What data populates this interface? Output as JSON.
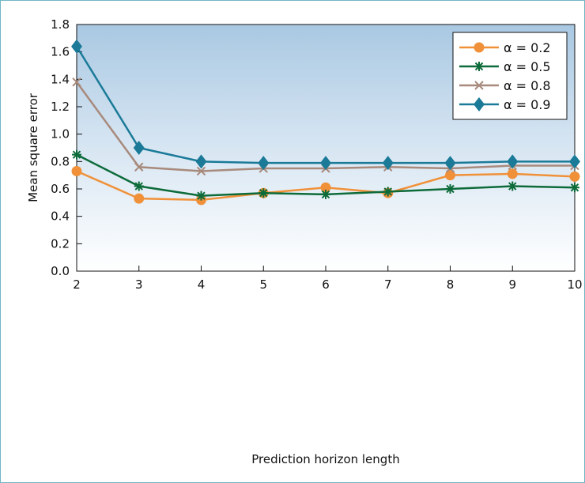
{
  "chart_data": {
    "type": "line",
    "title": "",
    "xlabel": "Prediction horizon length",
    "ylabel": "Mean square error",
    "x": [
      2,
      3,
      4,
      5,
      6,
      7,
      8,
      9,
      10
    ],
    "xlim": [
      2,
      10
    ],
    "ylim": [
      0.0,
      1.8
    ],
    "x_ticks": [
      "2",
      "3",
      "4",
      "5",
      "6",
      "7",
      "8",
      "9",
      "10"
    ],
    "y_ticks": [
      "0.0",
      "0.2",
      "0.4",
      "0.6",
      "0.8",
      "1.0",
      "1.2",
      "1.4",
      "1.6",
      "1.8"
    ],
    "grid": false,
    "legend_position": "top-right",
    "background": "vertical gradient, light blue at top fading to white at bottom",
    "series": [
      {
        "name": "α = 0.2",
        "color": "#f0913a",
        "marker": "circle",
        "values": [
          0.73,
          0.53,
          0.52,
          0.57,
          0.61,
          0.57,
          0.7,
          0.71,
          0.69
        ]
      },
      {
        "name": "α = 0.5",
        "color": "#0d6b3a",
        "marker": "asterisk",
        "values": [
          0.85,
          0.62,
          0.55,
          0.57,
          0.56,
          0.58,
          0.6,
          0.62,
          0.61
        ]
      },
      {
        "name": "α = 0.8",
        "color": "#a88a7c",
        "marker": "x",
        "values": [
          1.38,
          0.76,
          0.73,
          0.75,
          0.75,
          0.76,
          0.75,
          0.77,
          0.77
        ]
      },
      {
        "name": "α = 0.9",
        "color": "#1a7a98",
        "marker": "diamond",
        "values": [
          1.64,
          0.9,
          0.8,
          0.79,
          0.79,
          0.79,
          0.79,
          0.8,
          0.8
        ]
      }
    ]
  }
}
